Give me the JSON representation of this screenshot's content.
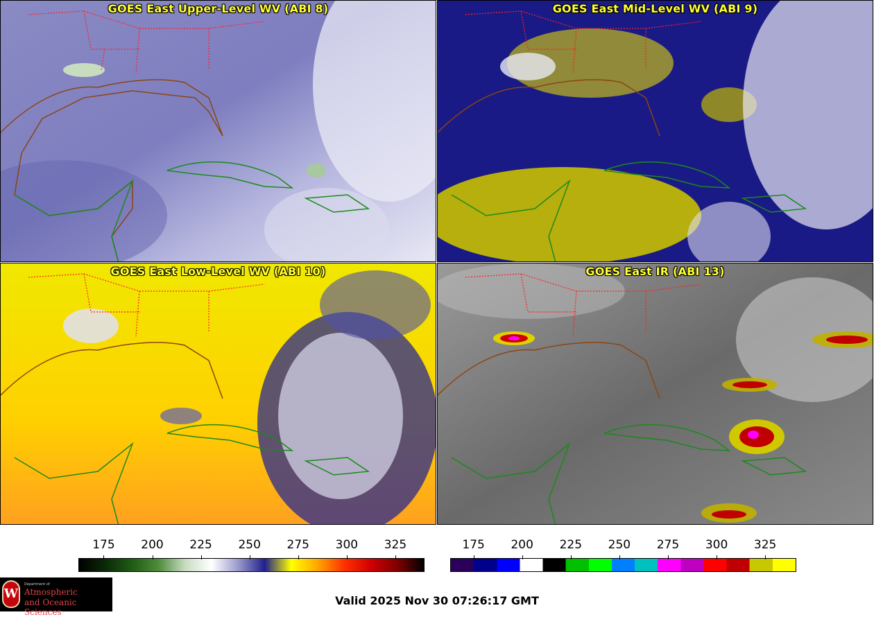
{
  "panels": [
    {
      "title": "GOES East Upper-Level WV (ABI 8)"
    },
    {
      "title": "GOES East Mid-Level WV (ABI 9)"
    },
    {
      "title": "GOES East Low-Level WV (ABI 10)"
    },
    {
      "title": "GOES East IR (ABI 13)"
    }
  ],
  "colorbars": {
    "wv": {
      "ticks": [
        "175",
        "200",
        "225",
        "250",
        "275",
        "300",
        "325"
      ],
      "range": [
        162,
        340
      ],
      "stops": [
        "#000000",
        "#0c2a08",
        "#1f5c14",
        "#4f8c3b",
        "#c9dcc2",
        "#ffffff",
        "#9a9acb",
        "#20208c",
        "#ffff00",
        "#ffa500",
        "#ff3000",
        "#d00000",
        "#800000",
        "#000000"
      ]
    },
    "ir": {
      "ticks": [
        "175",
        "200",
        "225",
        "250",
        "275",
        "300",
        "325"
      ],
      "range": [
        163,
        341
      ],
      "segments": [
        "#2a005a",
        "#00008b",
        "#0000ff",
        "#ffffff",
        "#000000",
        "#00c000",
        "#00ff00",
        "#0080ff",
        "#00c0c0",
        "#ff00ff",
        "#c000c0",
        "#ff0000",
        "#c00000",
        "#c8c800",
        "#ffff00"
      ]
    }
  },
  "footer": {
    "valid": "Valid 2025 Nov 30 07:26:17 GMT",
    "logo_dept": "Department of",
    "logo_line1": "Atmospheric",
    "logo_line2": "and Oceanic Sciences",
    "logo_seal": "W"
  },
  "colors": {
    "title_text": "#ffff33",
    "state_borders": "#ff2020",
    "coastline_land": "#1a8a1a",
    "coastline_us": "#8b4513"
  }
}
